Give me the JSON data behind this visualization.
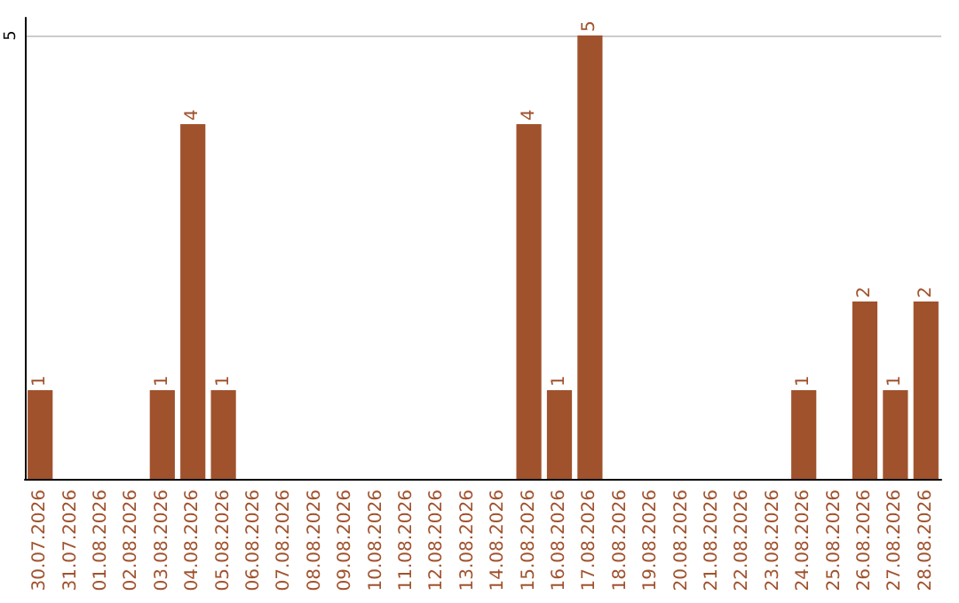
{
  "chart_data": {
    "type": "bar",
    "categories": [
      "30.07.2026",
      "31.07.2026",
      "01.08.2026",
      "02.08.2026",
      "03.08.2026",
      "04.08.2026",
      "05.08.2026",
      "06.08.2026",
      "07.08.2026",
      "08.08.2026",
      "09.08.2026",
      "10.08.2026",
      "11.08.2026",
      "12.08.2026",
      "13.08.2026",
      "14.08.2026",
      "15.08.2026",
      "16.08.2026",
      "17.08.2026",
      "18.08.2026",
      "19.08.2026",
      "20.08.2026",
      "21.08.2026",
      "22.08.2026",
      "23.08.2026",
      "24.08.2026",
      "25.08.2026",
      "26.08.2026",
      "27.08.2026",
      "28.08.2026"
    ],
    "values": [
      1,
      0,
      0,
      0,
      1,
      4,
      1,
      0,
      0,
      0,
      0,
      0,
      0,
      0,
      0,
      0,
      4,
      1,
      5,
      0,
      0,
      0,
      0,
      0,
      0,
      1,
      0,
      2,
      1,
      2
    ],
    "value_labels": [
      "1",
      null,
      null,
      null,
      "1",
      "4",
      "1",
      null,
      null,
      null,
      null,
      null,
      null,
      null,
      null,
      null,
      "4",
      "1",
      "5",
      null,
      null,
      null,
      null,
      null,
      null,
      "1",
      null,
      "2",
      "1",
      "2"
    ],
    "color": "#a0522d",
    "ylim": [
      0,
      5.2
    ],
    "yticks": [
      5
    ],
    "grid": "y"
  }
}
